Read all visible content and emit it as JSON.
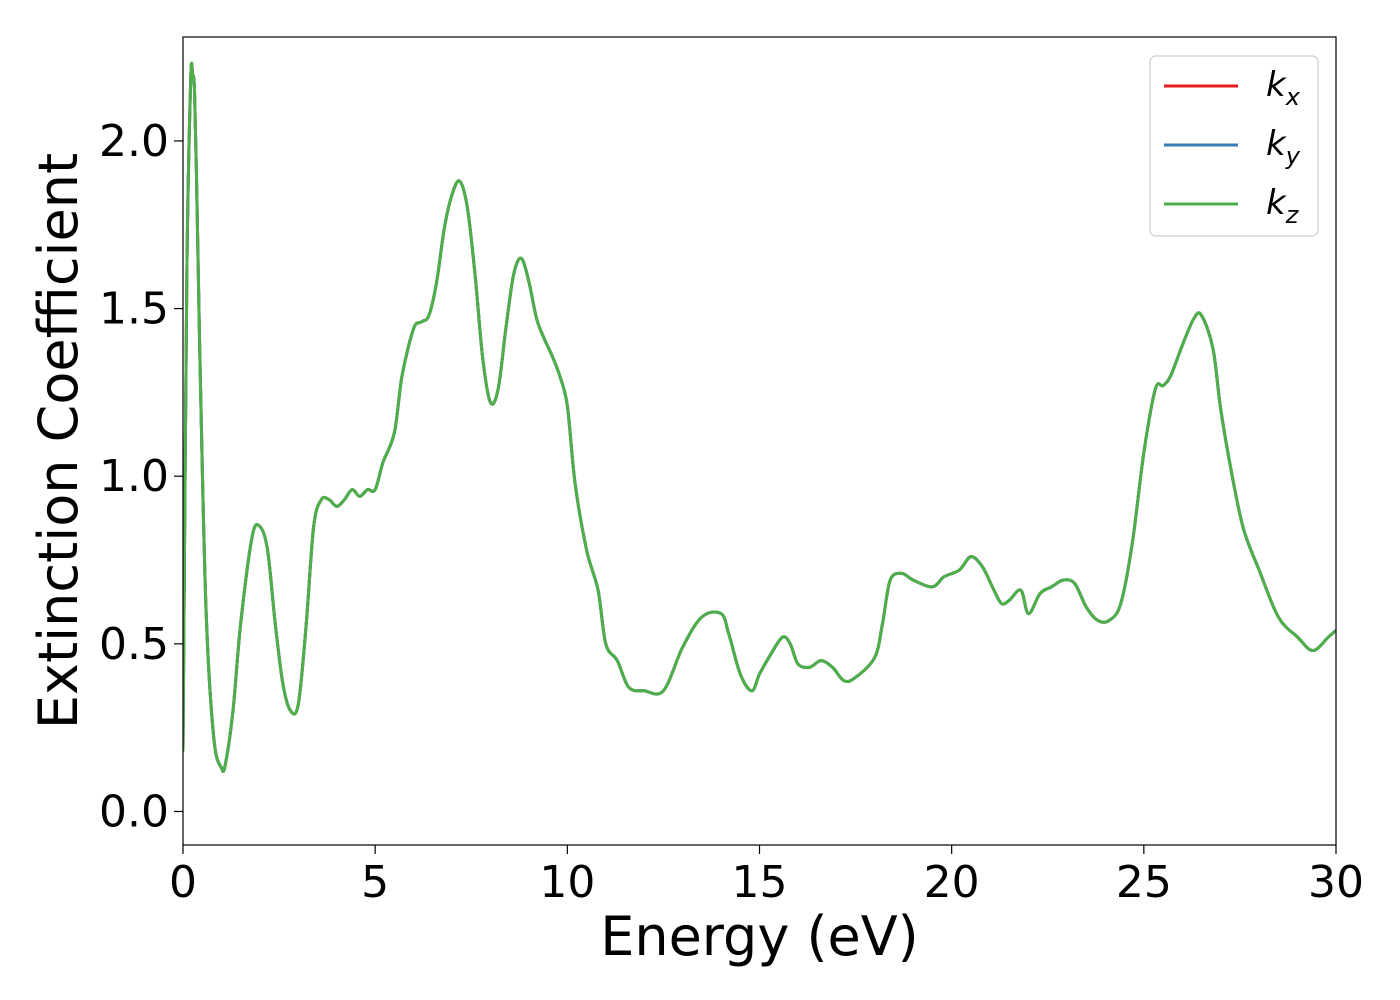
{
  "chart_data": {
    "type": "line",
    "title": "",
    "xlabel": "Energy (eV)",
    "ylabel": "Extinction Coefficient",
    "xlim": [
      0,
      30
    ],
    "ylim": [
      -0.1,
      2.31
    ],
    "xticks": [
      0,
      5,
      10,
      15,
      20,
      25,
      30
    ],
    "xtick_labels": [
      "0",
      "5",
      "10",
      "15",
      "20",
      "25",
      "30"
    ],
    "yticks": [
      0.0,
      0.5,
      1.0,
      1.5,
      2.0
    ],
    "ytick_labels": [
      "0.0",
      "0.5",
      "1.0",
      "1.5",
      "2.0"
    ],
    "grid": false,
    "legend_position": "top-right",
    "colors": {
      "kx": "#e41a1c",
      "ky": "#377eb8",
      "kz": "#4daf4a"
    },
    "legend": [
      {
        "base": "k",
        "sub": "x",
        "color": "#e41a1c"
      },
      {
        "base": "k",
        "sub": "y",
        "color": "#377eb8"
      },
      {
        "base": "k",
        "sub": "z",
        "color": "#4daf4a"
      }
    ],
    "x": [
      0,
      0.1,
      0.2,
      0.25,
      0.3,
      0.35,
      0.45,
      0.6,
      0.8,
      1.0,
      1.1,
      1.3,
      1.5,
      1.8,
      2.0,
      2.2,
      2.4,
      2.6,
      2.8,
      3.0,
      3.2,
      3.4,
      3.6,
      3.8,
      4.0,
      4.2,
      4.4,
      4.6,
      4.8,
      5.0,
      5.2,
      5.5,
      5.7,
      6.0,
      6.2,
      6.4,
      6.6,
      6.8,
      7.0,
      7.2,
      7.4,
      7.6,
      7.8,
      8.0,
      8.2,
      8.4,
      8.6,
      8.8,
      9.0,
      9.2,
      9.4,
      9.6,
      9.8,
      10.0,
      10.2,
      10.5,
      10.8,
      11.0,
      11.3,
      11.6,
      12.0,
      12.5,
      13.0,
      13.5,
      14.0,
      14.2,
      14.5,
      14.8,
      15.0,
      15.3,
      15.6,
      15.8,
      16.0,
      16.3,
      16.6,
      16.9,
      17.2,
      17.5,
      18.0,
      18.2,
      18.4,
      18.7,
      19.0,
      19.5,
      19.8,
      20.2,
      20.5,
      20.8,
      21.1,
      21.3,
      21.5,
      21.8,
      22.0,
      22.3,
      22.6,
      22.9,
      23.2,
      23.5,
      23.8,
      24.1,
      24.4,
      24.7,
      25.0,
      25.3,
      25.5,
      25.7,
      26.0,
      26.3,
      26.5,
      26.8,
      27.0,
      27.3,
      27.6,
      28.0,
      28.5,
      29.0,
      29.4,
      29.8,
      30.0
    ],
    "series": [
      {
        "name": "kx",
        "color": "#e41a1c",
        "values": [
          0.18,
          1.6,
          2.18,
          2.2,
          2.15,
          1.9,
          1.3,
          0.6,
          0.22,
          0.13,
          0.14,
          0.3,
          0.56,
          0.82,
          0.85,
          0.78,
          0.56,
          0.38,
          0.3,
          0.32,
          0.55,
          0.85,
          0.93,
          0.93,
          0.91,
          0.93,
          0.96,
          0.94,
          0.96,
          0.96,
          1.04,
          1.13,
          1.3,
          1.44,
          1.46,
          1.48,
          1.58,
          1.74,
          1.84,
          1.88,
          1.8,
          1.6,
          1.35,
          1.22,
          1.26,
          1.44,
          1.6,
          1.65,
          1.58,
          1.47,
          1.41,
          1.36,
          1.3,
          1.21,
          0.98,
          0.78,
          0.66,
          0.5,
          0.45,
          0.37,
          0.36,
          0.36,
          0.49,
          0.58,
          0.59,
          0.53,
          0.41,
          0.36,
          0.41,
          0.47,
          0.52,
          0.5,
          0.44,
          0.43,
          0.45,
          0.43,
          0.39,
          0.4,
          0.46,
          0.56,
          0.69,
          0.71,
          0.69,
          0.67,
          0.7,
          0.72,
          0.76,
          0.73,
          0.66,
          0.62,
          0.63,
          0.66,
          0.59,
          0.65,
          0.67,
          0.69,
          0.68,
          0.61,
          0.57,
          0.57,
          0.62,
          0.8,
          1.07,
          1.26,
          1.27,
          1.3,
          1.39,
          1.47,
          1.48,
          1.38,
          1.2,
          1.0,
          0.84,
          0.72,
          0.58,
          0.52,
          0.48,
          0.52,
          0.54
        ]
      },
      {
        "name": "ky",
        "color": "#377eb8",
        "values": [
          0.18,
          1.6,
          2.18,
          2.2,
          2.15,
          1.9,
          1.3,
          0.6,
          0.22,
          0.13,
          0.14,
          0.3,
          0.56,
          0.82,
          0.85,
          0.78,
          0.56,
          0.38,
          0.3,
          0.32,
          0.55,
          0.85,
          0.93,
          0.93,
          0.91,
          0.93,
          0.96,
          0.94,
          0.96,
          0.96,
          1.04,
          1.13,
          1.3,
          1.44,
          1.46,
          1.48,
          1.58,
          1.74,
          1.84,
          1.88,
          1.8,
          1.6,
          1.35,
          1.22,
          1.26,
          1.44,
          1.6,
          1.65,
          1.58,
          1.47,
          1.41,
          1.36,
          1.3,
          1.21,
          0.98,
          0.78,
          0.66,
          0.5,
          0.45,
          0.37,
          0.36,
          0.36,
          0.49,
          0.58,
          0.59,
          0.53,
          0.41,
          0.36,
          0.41,
          0.47,
          0.52,
          0.5,
          0.44,
          0.43,
          0.45,
          0.43,
          0.39,
          0.4,
          0.46,
          0.56,
          0.69,
          0.71,
          0.69,
          0.67,
          0.7,
          0.72,
          0.76,
          0.73,
          0.66,
          0.62,
          0.63,
          0.66,
          0.59,
          0.65,
          0.67,
          0.69,
          0.68,
          0.61,
          0.57,
          0.57,
          0.62,
          0.8,
          1.07,
          1.26,
          1.27,
          1.3,
          1.39,
          1.47,
          1.48,
          1.38,
          1.2,
          1.0,
          0.84,
          0.72,
          0.58,
          0.52,
          0.48,
          0.52,
          0.54
        ]
      },
      {
        "name": "kz",
        "color": "#4daf4a",
        "values": [
          0.18,
          1.6,
          2.18,
          2.2,
          2.15,
          1.9,
          1.3,
          0.6,
          0.22,
          0.13,
          0.14,
          0.3,
          0.56,
          0.82,
          0.85,
          0.78,
          0.56,
          0.38,
          0.3,
          0.32,
          0.55,
          0.85,
          0.93,
          0.93,
          0.91,
          0.93,
          0.96,
          0.94,
          0.96,
          0.96,
          1.04,
          1.13,
          1.3,
          1.44,
          1.46,
          1.48,
          1.58,
          1.74,
          1.84,
          1.88,
          1.8,
          1.6,
          1.35,
          1.22,
          1.26,
          1.44,
          1.6,
          1.65,
          1.58,
          1.47,
          1.41,
          1.36,
          1.3,
          1.21,
          0.98,
          0.78,
          0.66,
          0.5,
          0.45,
          0.37,
          0.36,
          0.36,
          0.49,
          0.58,
          0.59,
          0.53,
          0.41,
          0.36,
          0.41,
          0.47,
          0.52,
          0.5,
          0.44,
          0.43,
          0.45,
          0.43,
          0.39,
          0.4,
          0.46,
          0.56,
          0.69,
          0.71,
          0.69,
          0.67,
          0.7,
          0.72,
          0.76,
          0.73,
          0.66,
          0.62,
          0.63,
          0.66,
          0.59,
          0.65,
          0.67,
          0.69,
          0.68,
          0.61,
          0.57,
          0.57,
          0.62,
          0.8,
          1.07,
          1.26,
          1.27,
          1.3,
          1.39,
          1.47,
          1.48,
          1.38,
          1.2,
          1.0,
          0.84,
          0.72,
          0.58,
          0.52,
          0.48,
          0.52,
          0.54
        ]
      }
    ]
  }
}
